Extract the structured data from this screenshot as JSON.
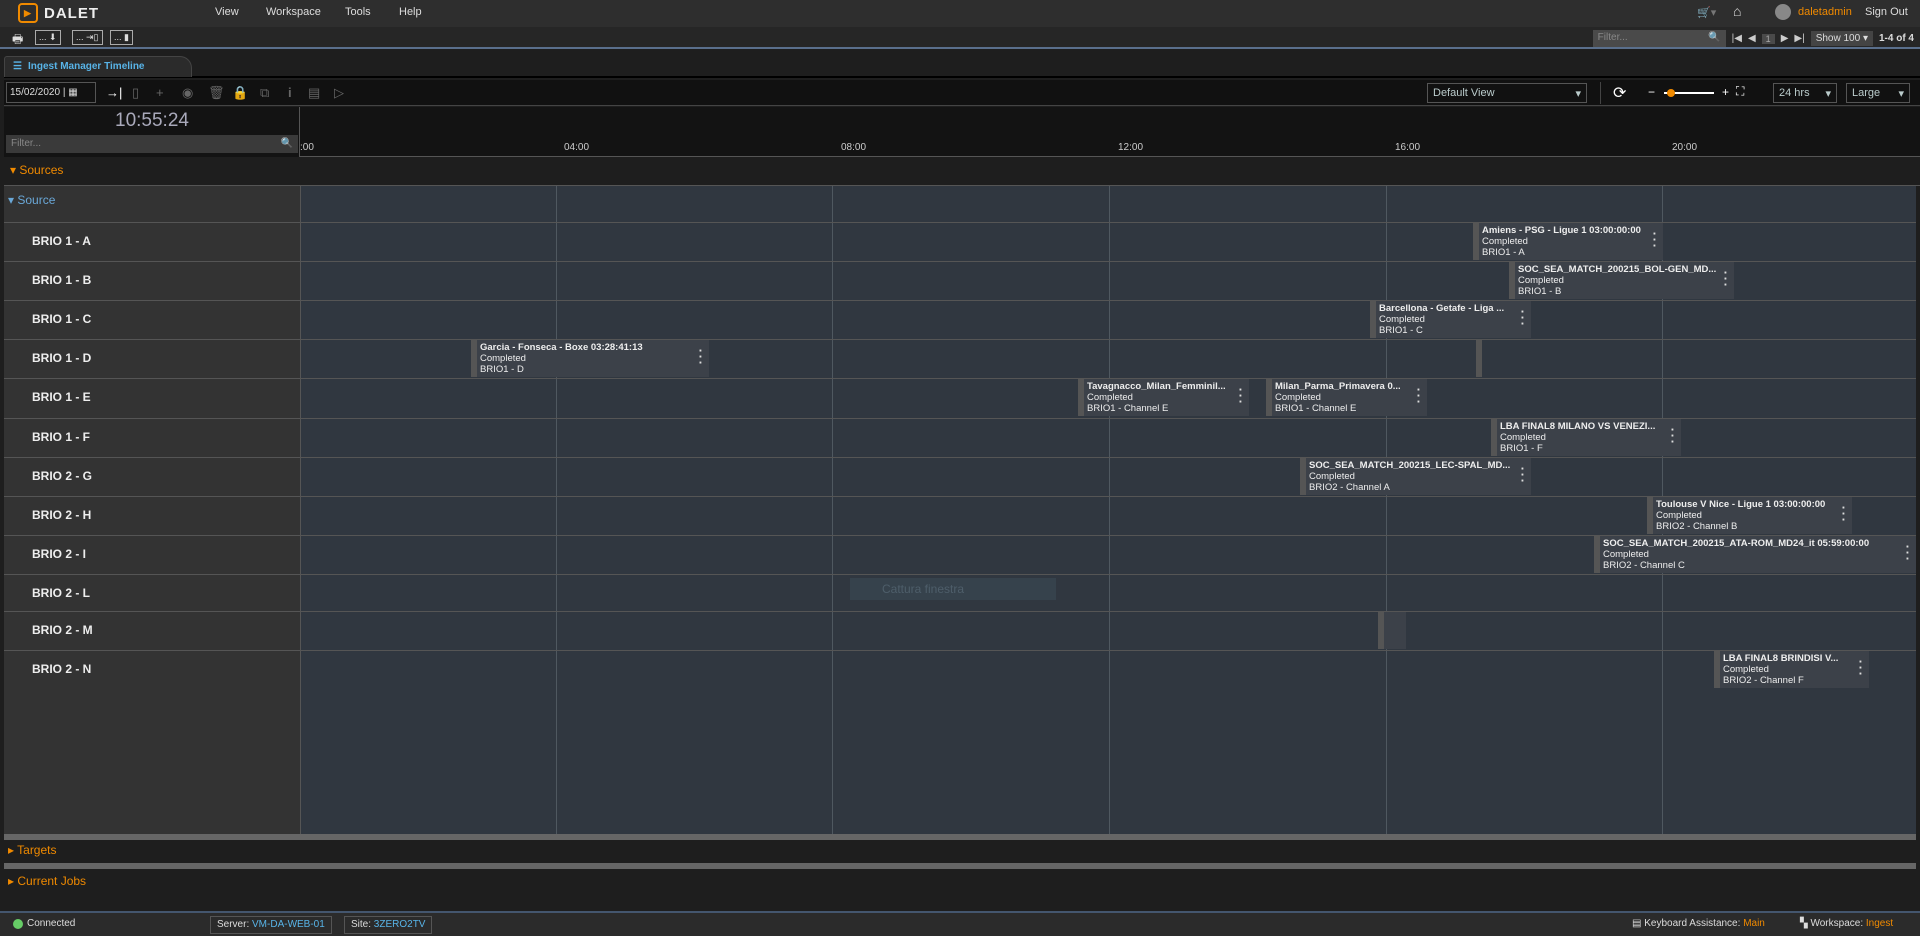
{
  "app": {
    "brand": "DALET",
    "menu": [
      "View",
      "Workspace",
      "Tools",
      "Help"
    ],
    "user": "daletadmin",
    "sign_out": "Sign Out"
  },
  "toolbar": {
    "buttons": [
      "...",
      "...",
      "..."
    ],
    "filter_placeholder": "Filter...",
    "page": "1",
    "show": "Show 100",
    "range": "1-4 of 4"
  },
  "tab": {
    "label": "Ingest Manager Timeline"
  },
  "timeline_toolbar": {
    "date": "15/02/2020",
    "view": "Default View",
    "span": "24 hrs",
    "size": "Large",
    "zoom_level": 0.1
  },
  "clock": "10:55:24",
  "filter_placeholder": "Filter...",
  "ticks": [
    ":00",
    "04:00",
    "08:00",
    "12:00",
    "16:00",
    "20:00"
  ],
  "sources": {
    "header": "Sources",
    "group": "Source",
    "rows": [
      {
        "label": "BRIO 1 - A",
        "jobs": [
          {
            "title": "Amiens - PSG - Ligue 1 03:00:00:00",
            "status": "Completed",
            "channel": "BRIO1 - A"
          }
        ]
      },
      {
        "label": "BRIO 1 - B",
        "jobs": [
          {
            "title": "SOC_SEA_MATCH_200215_BOL-GEN_MD...",
            "status": "Completed",
            "channel": "BRIO1 - B"
          }
        ]
      },
      {
        "label": "BRIO 1 - C",
        "jobs": [
          {
            "title": "Barcellona - Getafe - Liga ...",
            "status": "Completed",
            "channel": "BRIO1 - C"
          }
        ]
      },
      {
        "label": "BRIO 1 - D",
        "jobs": [
          {
            "title": "Garcia - Fonseca - Boxe 03:28:41:13",
            "status": "Completed",
            "channel": "BRIO1 - D"
          }
        ]
      },
      {
        "label": "BRIO 1 - E",
        "jobs": [
          {
            "title": "Tavagnacco_Milan_Femminil...",
            "status": "Completed",
            "channel": "BRIO1 - Channel E"
          },
          {
            "title": "Milan_Parma_Primavera 0...",
            "status": "Completed",
            "channel": "BRIO1 - Channel E"
          }
        ]
      },
      {
        "label": "BRIO 1 - F",
        "jobs": [
          {
            "title": "LBA FINAL8 MILANO VS VENEZI...",
            "status": "Completed",
            "channel": "BRIO1 - F"
          }
        ]
      },
      {
        "label": "BRIO 2 - G",
        "jobs": [
          {
            "title": "SOC_SEA_MATCH_200215_LEC-SPAL_MD...",
            "status": "Completed",
            "channel": "BRIO2 - Channel A"
          }
        ]
      },
      {
        "label": "BRIO 2 - H",
        "jobs": [
          {
            "title": "Toulouse V Nice - Ligue 1 03:00:00:00",
            "status": "Completed",
            "channel": "BRIO2 - Channel B"
          }
        ]
      },
      {
        "label": "BRIO 2 - I",
        "jobs": [
          {
            "title": "SOC_SEA_MATCH_200215_ATA-ROM_MD24_it 05:59:00:00",
            "status": "Completed",
            "channel": "BRIO2 - Channel C"
          }
        ]
      },
      {
        "label": "BRIO 2 - L",
        "jobs": []
      },
      {
        "label": "BRIO 2 - M",
        "jobs": []
      },
      {
        "label": "BRIO 2 - N",
        "jobs": [
          {
            "title": "LBA FINAL8 BRINDISI V...",
            "status": "Completed",
            "channel": "BRIO2 - Channel F"
          }
        ]
      }
    ]
  },
  "tooltip": "Cattura finestra",
  "targets": "Targets",
  "current_jobs": "Current Jobs",
  "status": {
    "connected": "Connected",
    "server_label": "Server:",
    "server": "VM-DA-WEB-01",
    "site_label": "Site:",
    "site": "3ZERO2TV",
    "kb_label": "Keyboard Assistance:",
    "kb": "Main",
    "ws_label": "Workspace:",
    "ws": "Ingest"
  },
  "colors": {
    "accent": "#f08a00",
    "link": "#58b4e8",
    "grid": "#303740"
  }
}
